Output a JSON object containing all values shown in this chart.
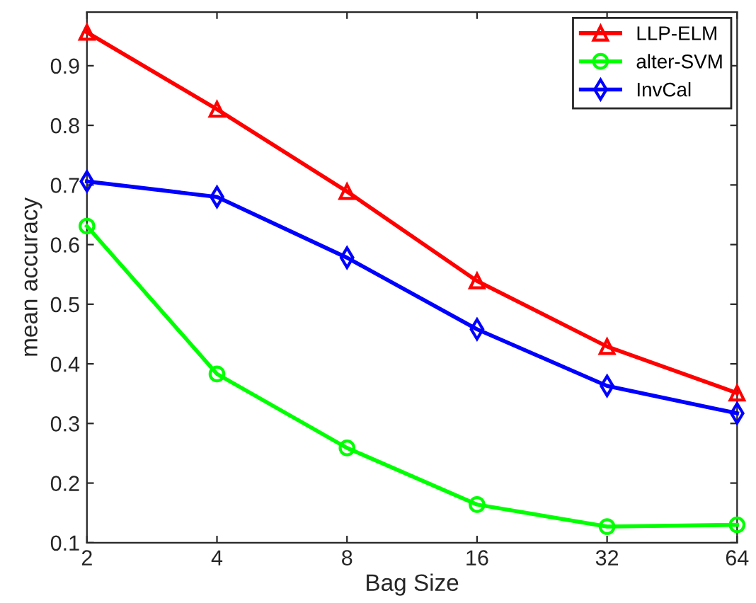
{
  "chart_data": {
    "type": "line",
    "xlabel": "Bag Size",
    "ylabel": "mean accuracy",
    "categories": [
      "2",
      "4",
      "8",
      "16",
      "32",
      "64"
    ],
    "series": [
      {
        "name": "LLP-ELM",
        "color": "#ff0000",
        "marker": "triangle",
        "values": [
          0.956,
          0.827,
          0.689,
          0.539,
          0.429,
          0.351
        ]
      },
      {
        "name": "alter-SVM",
        "color": "#00ff00",
        "marker": "circle",
        "values": [
          0.631,
          0.383,
          0.259,
          0.164,
          0.127,
          0.13
        ]
      },
      {
        "name": "InvCal",
        "color": "#0000ff",
        "marker": "diamond",
        "values": [
          0.706,
          0.68,
          0.578,
          0.458,
          0.363,
          0.317
        ]
      }
    ],
    "ylim": [
      0.1,
      0.99
    ],
    "yticks": [
      0.1,
      0.2,
      0.3,
      0.4,
      0.5,
      0.6,
      0.7,
      0.8,
      0.9
    ],
    "legend": "top right",
    "grid": false,
    "line_style": "solid"
  }
}
